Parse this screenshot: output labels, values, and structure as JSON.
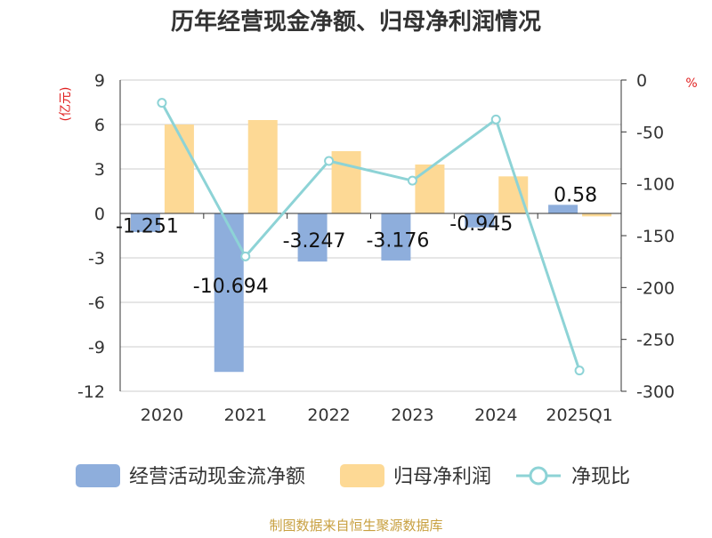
{
  "title": "历年经营现金净额、归母净利润情况",
  "source": "制图数据来自恒生聚源数据库",
  "colors": {
    "cashflow": "#8eaedc",
    "net_profit": "#fdd995",
    "ratio": "#8dd3d6",
    "axis_unit": "#e02020",
    "source_text": "#c8a040"
  },
  "chart_data": {
    "type": "bar",
    "title": "历年经营现金净额、归母净利润情况",
    "categories": [
      "2020",
      "2021",
      "2022",
      "2023",
      "2024",
      "2025Q1"
    ],
    "y_left": {
      "label": "(亿元)",
      "ylim": [
        -12,
        9
      ],
      "ticks": [
        9,
        6,
        3,
        0,
        -3,
        -6,
        -9,
        -12
      ]
    },
    "y_right": {
      "label": "%",
      "ylim": [
        -300,
        0
      ],
      "ticks": [
        0,
        -50,
        -100,
        -150,
        -200,
        -250,
        -300
      ]
    },
    "grid": true,
    "legend_position": "bottom",
    "series": [
      {
        "name": "经营活动现金流净额",
        "type": "bar",
        "axis": "left",
        "values": [
          -1.251,
          -10.694,
          -3.247,
          -3.176,
          -0.945,
          0.58
        ],
        "labels": [
          "-1.251",
          "-10.694",
          "-3.247",
          "-3.176",
          "-0.945",
          "0.58"
        ]
      },
      {
        "name": "归母净利润",
        "type": "bar",
        "axis": "left",
        "values": [
          6.0,
          6.3,
          4.2,
          3.3,
          2.5,
          -0.2
        ]
      },
      {
        "name": "净现比",
        "type": "line",
        "axis": "right",
        "values": [
          -22,
          -170,
          -78,
          -97,
          -38,
          -280
        ]
      }
    ]
  }
}
